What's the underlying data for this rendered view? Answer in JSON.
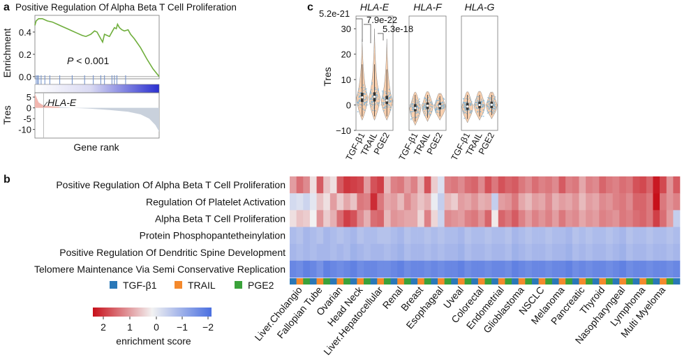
{
  "panel_labels": {
    "a": "a",
    "b": "b",
    "c": "c"
  },
  "chart_data": [
    {
      "panel": "a",
      "type": "line",
      "title": "Positive Regulation Of Alpha Beta T Cell Proliferation",
      "ylabel_top": "Enrichment",
      "ylabel_bottom": "Tres",
      "xlabel": "Gene rank",
      "annotation_p_prefix": "P",
      "annotation_p_value": "< 0.001",
      "gene_label": "HLA-E",
      "top_yticks": [
        0.0,
        0.2,
        0.4
      ],
      "top_ylim": [
        -0.02,
        0.55
      ],
      "bottom_yticks": [
        5,
        0,
        -5,
        -10
      ],
      "bottom_ylim": [
        -14,
        7
      ],
      "enrichment_curve": [
        [
          0,
          0.46
        ],
        [
          0.01,
          0.5
        ],
        [
          0.03,
          0.52
        ],
        [
          0.06,
          0.52
        ],
        [
          0.1,
          0.5
        ],
        [
          0.14,
          0.49
        ],
        [
          0.18,
          0.47
        ],
        [
          0.22,
          0.45
        ],
        [
          0.26,
          0.43
        ],
        [
          0.3,
          0.41
        ],
        [
          0.34,
          0.39
        ],
        [
          0.38,
          0.37
        ],
        [
          0.41,
          0.36
        ],
        [
          0.45,
          0.38
        ],
        [
          0.48,
          0.41
        ],
        [
          0.5,
          0.4
        ],
        [
          0.52,
          0.36
        ],
        [
          0.545,
          0.31
        ],
        [
          0.56,
          0.38
        ],
        [
          0.6,
          0.36
        ],
        [
          0.62,
          0.4
        ],
        [
          0.64,
          0.44
        ],
        [
          0.655,
          0.43
        ],
        [
          0.665,
          0.47
        ],
        [
          0.68,
          0.44
        ],
        [
          0.7,
          0.42
        ],
        [
          0.72,
          0.41
        ],
        [
          0.75,
          0.42
        ],
        [
          0.77,
          0.38
        ],
        [
          0.8,
          0.34
        ],
        [
          0.85,
          0.26
        ],
        [
          0.9,
          0.16
        ],
        [
          0.95,
          0.07
        ],
        [
          1.0,
          0.0
        ]
      ],
      "hit_positions": [
        0.01,
        0.02,
        0.03,
        0.05,
        0.08,
        0.12,
        0.2,
        0.3,
        0.4,
        0.47,
        0.53,
        0.56,
        0.62,
        0.64,
        0.66,
        0.73
      ],
      "tres_curve": [
        [
          0,
          6.5
        ],
        [
          0.03,
          2.5
        ],
        [
          0.06,
          1.4
        ],
        [
          0.1,
          0.9
        ],
        [
          0.2,
          0.4
        ],
        [
          0.3,
          0.0
        ],
        [
          0.45,
          -0.4
        ],
        [
          0.6,
          -1.0
        ],
        [
          0.75,
          -1.8
        ],
        [
          0.85,
          -3.0
        ],
        [
          0.92,
          -5.0
        ],
        [
          0.97,
          -8.0
        ],
        [
          1.0,
          -11.0
        ]
      ],
      "gene_rank_position": 0.07,
      "colors": {
        "curve": "#6fae3c",
        "fill_pos": "#f2b7b0",
        "fill_neg": "#c9d1dc",
        "bar_left": "#ffffff",
        "bar_right": "#2a2fd0"
      }
    },
    {
      "panel": "c",
      "type": "violin",
      "ylabel": "Tres",
      "yticks": [
        30,
        20,
        10,
        0,
        -10
      ],
      "ylim": [
        -10,
        35
      ],
      "facets": [
        {
          "title": "HLA-E",
          "groups": [
            {
              "name": "TGF-β1",
              "center": 3.0,
              "q1": 1.2,
              "q3": 4.8,
              "whisker": [
                -4.5,
                16
              ],
              "max": 26
            },
            {
              "name": "TRAIL",
              "center": 3.2,
              "q1": 1.4,
              "q3": 5.0,
              "whisker": [
                -4.5,
                16
              ],
              "max": 30
            },
            {
              "name": "PGE2",
              "center": 1.8,
              "q1": 0.4,
              "q3": 3.6,
              "whisker": [
                -4.5,
                14
              ],
              "max": 26
            }
          ]
        },
        {
          "title": "HLA-F",
          "groups": [
            {
              "name": "TGF-β1",
              "center": -1.2,
              "q1": -2.5,
              "q3": 0.3,
              "whisker": [
                -6.5,
                4
              ],
              "max": 5
            },
            {
              "name": "TRAIL",
              "center": -0.3,
              "q1": -1.6,
              "q3": 1.0,
              "whisker": [
                -5,
                4
              ],
              "max": 5
            },
            {
              "name": "PGE2",
              "center": -0.4,
              "q1": -1.6,
              "q3": 0.8,
              "whisker": [
                -4.5,
                3.5
              ],
              "max": 4
            }
          ]
        },
        {
          "title": "HLA-G",
          "groups": [
            {
              "name": "TGF-β1",
              "center": -0.6,
              "q1": -1.9,
              "q3": 0.8,
              "whisker": [
                -5.5,
                4
              ],
              "max": 5
            },
            {
              "name": "TRAIL",
              "center": 0.0,
              "q1": -1.3,
              "q3": 1.3,
              "whisker": [
                -4.5,
                4
              ],
              "max": 5
            },
            {
              "name": "PGE2",
              "center": 0.1,
              "q1": -1.2,
              "q3": 1.3,
              "whisker": [
                -4,
                4
              ],
              "max": 4.5
            }
          ]
        }
      ],
      "pvalues": [
        "5.2e-21",
        "7.9e-22",
        "5.3e-18"
      ],
      "colors": {
        "violin": "#f2a86b",
        "points": "#7fb3d5",
        "center": "#111111"
      }
    },
    {
      "panel": "b",
      "type": "heatmap",
      "rows": [
        "Positive Regulation Of Alpha Beta T Cell Proliferation",
        "Regulation Of Platelet Activation",
        "Alpha Beta T Cell Proliferation",
        "Protein Phosphopantetheinylation",
        "Positive Regulation Of Dendritic Spine Development",
        "Telomere Maintenance Via Semi Conservative Replication"
      ],
      "cancer_labels": [
        "Liver.Cholangio",
        "Fallopian Tube",
        "Ovarian",
        "Head Neck",
        "Liver.Hepatocellular",
        "Renal",
        "Breast",
        "Esophageal",
        "Uveal",
        "Colorectal",
        "Endometrial",
        "Glioblastoma",
        "NSCLC",
        "Melanoma",
        "Pancreatic",
        "Thyroid",
        "Nasopharyngeal",
        "Lymphoma",
        "Multi Myeloma"
      ],
      "treatments": [
        "TGF-β1",
        "TRAIL",
        "PGE2"
      ],
      "treatment_colors": [
        "#2a78b8",
        "#f4892c",
        "#3aa23a"
      ],
      "values": [
        [
          0.9,
          1.4,
          1.1,
          0.2,
          1.6,
          0.5,
          0.2,
          1.6,
          2.0,
          1.9,
          1.8,
          0.9,
          1.7,
          1.9,
          0.6,
          1.2,
          1.3,
          0.9,
          1.2,
          0.6,
          1.7,
          0.4,
          -0.3,
          1.2,
          1.3,
          1.1,
          1.4,
          1.5,
          1.1,
          1.7,
          1.3,
          1.7,
          1.5,
          1.6,
          1.3,
          1.1,
          1.4,
          1.2,
          1.3,
          1.1,
          1.6,
          1.2,
          1.3,
          0.8,
          1.2,
          1.1,
          1.5,
          1.3,
          1.2,
          1.4,
          1.3,
          1.7,
          1.8,
          1.5,
          2.3,
          1.8,
          1.0,
          1.6
        ],
        [
          -0.4,
          -0.3,
          -0.5,
          -0.2,
          0.5,
          0.2,
          0.9,
          0.4,
          0.8,
          0.5,
          1.3,
          1.2,
          2.1,
          1.3,
          0.8,
          0.9,
          0.6,
          1.1,
          0.8,
          0.5,
          0.7,
          -0.1,
          -0.6,
          0.6,
          0.4,
          0.9,
          0.8,
          1.0,
          0.7,
          0.8,
          -0.6,
          0.9,
          1.0,
          1.3,
          0.8,
          0.6,
          0.9,
          0.8,
          1.1,
          0.7,
          0.9,
          0.8,
          1.0,
          0.6,
          0.9,
          0.8,
          1.1,
          1.0,
          1.2,
          1.3,
          1.1,
          1.5,
          1.5,
          1.3,
          2.4,
          1.3,
          1.0,
          1.2
        ],
        [
          0.2,
          0.5,
          0.4,
          0.0,
          1.0,
          0.4,
          0.7,
          1.4,
          1.9,
          1.7,
          1.1,
          0.7,
          1.4,
          1.5,
          0.6,
          1.0,
          0.9,
          0.8,
          0.8,
          0.3,
          1.2,
          0.3,
          -0.5,
          1.1,
          1.0,
          0.9,
          1.2,
          1.3,
          1.0,
          1.5,
          0.1,
          1.5,
          1.3,
          1.6,
          1.2,
          0.9,
          1.2,
          1.0,
          1.2,
          0.9,
          1.3,
          1.0,
          1.1,
          0.8,
          1.0,
          0.9,
          1.2,
          1.1,
          1.0,
          1.3,
          1.2,
          1.4,
          1.5,
          1.3,
          1.9,
          1.4,
          0.9,
          -0.6
        ],
        [
          -0.9,
          -0.8,
          -1.0,
          -0.9,
          -0.8,
          -1.0,
          -0.9,
          -0.8,
          -0.9,
          -1.0,
          -0.8,
          -0.9,
          -0.9,
          -0.8,
          -0.8,
          -0.9,
          -1.0,
          -0.8,
          -0.9,
          -0.9,
          -0.8,
          -0.9,
          -0.8,
          -0.9,
          -0.9,
          -1.0,
          -0.8,
          -0.9,
          -0.9,
          -0.8,
          -0.9,
          -0.9,
          -0.8,
          -1.0,
          -0.9,
          -0.8,
          -0.9,
          -0.9,
          -0.8,
          -0.9,
          -0.9,
          -1.0,
          -0.8,
          -0.9,
          -0.8,
          -0.9,
          -0.9,
          -0.8,
          -0.9,
          -1.0,
          -0.8,
          -0.9,
          -0.9,
          -0.8,
          -0.9,
          -0.9,
          -0.8,
          -0.9
        ],
        [
          -1.0,
          -0.9,
          -1.0,
          -0.9,
          -1.0,
          -1.0,
          -0.9,
          -1.0,
          -0.9,
          -1.1,
          -1.0,
          -0.9,
          -1.0,
          -1.0,
          -0.9,
          -1.0,
          -1.1,
          -0.9,
          -1.0,
          -1.0,
          -0.9,
          -1.0,
          -0.9,
          -1.0,
          -1.0,
          -1.1,
          -0.9,
          -1.0,
          -1.0,
          -0.9,
          -1.0,
          -1.0,
          -0.9,
          -1.1,
          -1.0,
          -0.9,
          -1.0,
          -1.0,
          -0.9,
          -1.0,
          -1.0,
          -1.1,
          -0.9,
          -1.0,
          -0.9,
          -1.0,
          -1.0,
          -0.9,
          -1.0,
          -1.1,
          -0.9,
          -1.0,
          -1.0,
          -0.9,
          -1.0,
          -1.0,
          -0.9,
          -1.0
        ],
        [
          -1.8,
          -1.7,
          -1.9,
          -1.8,
          -1.6,
          -1.9,
          -1.8,
          -1.7,
          -1.8,
          -1.9,
          -1.7,
          -1.8,
          -1.8,
          -1.7,
          -1.7,
          -1.8,
          -1.9,
          -1.7,
          -1.8,
          -1.8,
          -1.7,
          -1.8,
          -1.7,
          -1.8,
          -1.8,
          -1.9,
          -1.7,
          -1.8,
          -1.8,
          -1.7,
          -1.8,
          -1.8,
          -1.7,
          -1.9,
          -1.8,
          -1.7,
          -1.8,
          -1.8,
          -1.7,
          -1.8,
          -1.8,
          -1.9,
          -1.7,
          -1.8,
          -1.7,
          -1.8,
          -1.8,
          -1.7,
          -1.8,
          -1.9,
          -1.7,
          -1.8,
          -1.8,
          -1.7,
          -1.8,
          -1.8,
          -1.7,
          -1.8
        ]
      ],
      "colorbar": {
        "label": "enrichment score",
        "ticks": [
          "2",
          "1",
          "0",
          "−1",
          "−2"
        ],
        "min": -2.2,
        "max": 2.4,
        "low_color": "#4a6fe0",
        "mid_color": "#f2f2f2",
        "high_color": "#c7101a"
      }
    }
  ]
}
